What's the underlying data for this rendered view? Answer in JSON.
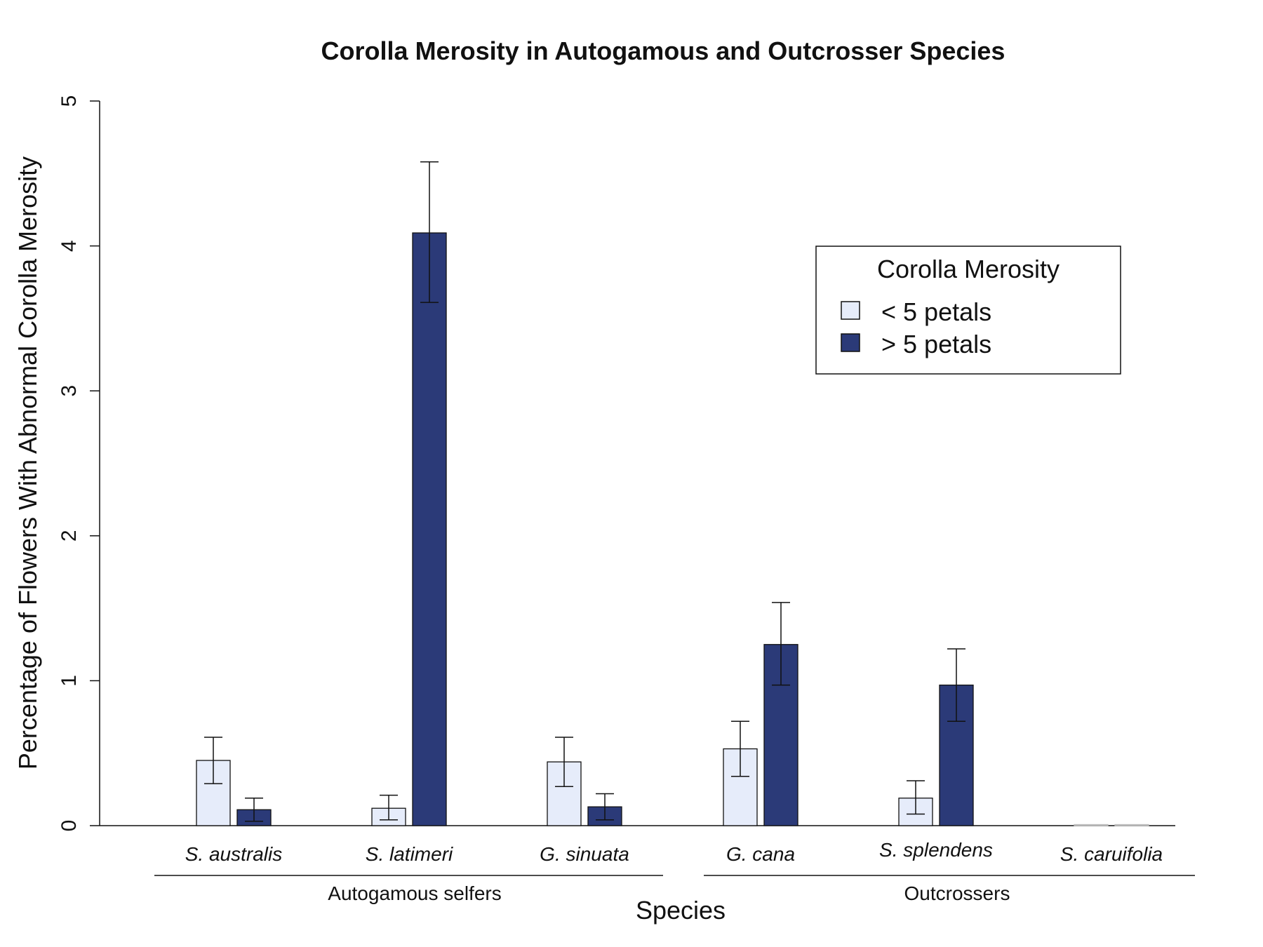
{
  "chart_data": {
    "type": "bar",
    "title": "Corolla Merosity in Autogamous and Outcrosser Species",
    "xlabel": "Species",
    "ylabel": "Percentage of Flowers With Abnormal Corolla Merosity",
    "ylim": [
      0,
      5
    ],
    "yticks": [
      "0",
      "1",
      "2",
      "3",
      "4",
      "5"
    ],
    "grid": false,
    "categories": [
      "S. australis",
      "S. latimeri",
      "G. sinuata",
      "G. cana",
      "S. splendens",
      "S. caruifolia"
    ],
    "groups": [
      {
        "label": "Autogamous selfers",
        "categories": [
          "S. australis",
          "S. latimeri",
          "G. sinuata"
        ]
      },
      {
        "label": "Outcrossers",
        "categories": [
          "G. cana",
          "S. splendens",
          "S. caruifolia"
        ]
      }
    ],
    "legend": {
      "title": "Corolla Merosity",
      "placement": "right",
      "entries": [
        "< 5 petals",
        "> 5 petals"
      ]
    },
    "series": [
      {
        "name": "< 5 petals",
        "color": "#e6ecfa",
        "values": [
          0.45,
          0.12,
          0.44,
          0.53,
          0.19,
          0.0
        ],
        "err_low": [
          0.29,
          0.04,
          0.27,
          0.34,
          0.08,
          0.0
        ],
        "err_high": [
          0.61,
          0.21,
          0.61,
          0.72,
          0.31,
          0.0
        ]
      },
      {
        "name": "> 5 petals",
        "color": "#2b3a78",
        "values": [
          0.11,
          4.09,
          0.13,
          1.25,
          0.97,
          0.0
        ],
        "err_low": [
          0.03,
          3.61,
          0.04,
          0.97,
          0.72,
          0.0
        ],
        "err_high": [
          0.19,
          4.58,
          0.22,
          1.54,
          1.22,
          0.0
        ]
      }
    ]
  }
}
